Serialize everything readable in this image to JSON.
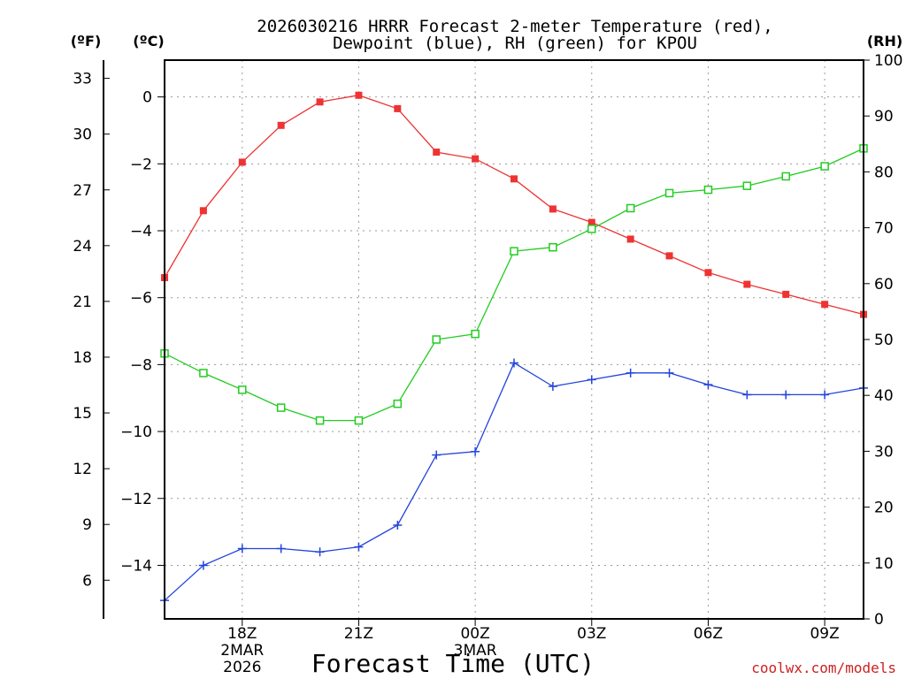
{
  "chart_data": {
    "type": "line",
    "title_line1": "2026030216 HRRR Forecast 2-meter Temperature (red),",
    "title_line2": "Dewpoint (blue), RH (green) for KPOU",
    "xlabel": "Forecast Time (UTC)",
    "left_unit_f": "(ºF)",
    "left_unit_c": "(ºC)",
    "right_unit": "(RH)",
    "watermark": "coolwx.com/models",
    "x_hours": [
      16,
      17,
      18,
      19,
      20,
      21,
      22,
      23,
      24,
      25,
      26,
      27,
      28,
      29,
      30,
      31,
      32,
      33,
      34
    ],
    "x_ticks": [
      {
        "hour": 18,
        "label": "18Z",
        "sub1": "2MAR",
        "sub2": "2026"
      },
      {
        "hour": 21,
        "label": "21Z",
        "sub1": "",
        "sub2": ""
      },
      {
        "hour": 24,
        "label": "00Z",
        "sub1": "3MAR",
        "sub2": ""
      },
      {
        "hour": 27,
        "label": "03Z",
        "sub1": "",
        "sub2": ""
      },
      {
        "hour": 30,
        "label": "06Z",
        "sub1": "",
        "sub2": ""
      },
      {
        "hour": 33,
        "label": "09Z",
        "sub1": "",
        "sub2": ""
      }
    ],
    "x_range": [
      16,
      34
    ],
    "celsius_range": [
      -15.6,
      1.1
    ],
    "celsius_ticks": [
      0,
      -2,
      -4,
      -6,
      -8,
      -10,
      -12,
      -14
    ],
    "fahrenheit_ticks": [
      33,
      30,
      27,
      24,
      21,
      18,
      15,
      12,
      9,
      6
    ],
    "rh_range": [
      0,
      100
    ],
    "rh_ticks": [
      100,
      90,
      80,
      70,
      60,
      50,
      40,
      30,
      20,
      10,
      0
    ],
    "series": [
      {
        "name": "Temperature",
        "color": "#ee3333",
        "marker": "filled-square",
        "axis": "celsius",
        "values": [
          -5.4,
          -3.4,
          -1.95,
          -0.85,
          -0.15,
          0.05,
          -0.35,
          -1.65,
          -1.85,
          -2.45,
          -3.35,
          -3.75,
          -4.25,
          -4.75,
          -5.25,
          -5.6,
          -5.9,
          -6.2,
          -6.5
        ]
      },
      {
        "name": "Dewpoint",
        "color": "#2244dd",
        "marker": "plus",
        "axis": "celsius",
        "values": [
          -15.05,
          -14.0,
          -13.5,
          -13.5,
          -13.6,
          -13.45,
          -12.8,
          -10.7,
          -10.6,
          -7.95,
          -8.65,
          -8.45,
          -8.25,
          -8.25,
          -8.6,
          -8.9,
          -8.9,
          -8.9,
          -8.7
        ]
      },
      {
        "name": "RH",
        "color": "#22cc22",
        "marker": "open-square",
        "axis": "rh",
        "values": [
          47.5,
          44.0,
          41.0,
          37.8,
          35.5,
          35.5,
          38.5,
          50.0,
          51.0,
          65.8,
          66.5,
          69.8,
          73.5,
          76.2,
          76.8,
          77.5,
          79.2,
          81.0,
          84.2
        ]
      }
    ]
  }
}
